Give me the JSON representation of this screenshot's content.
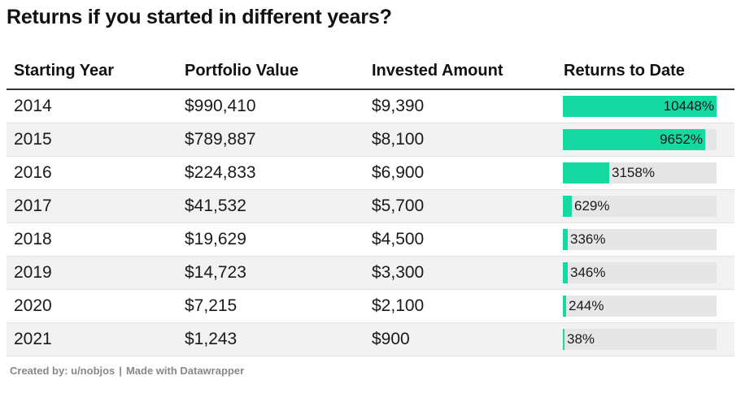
{
  "title": "Returns if you started in different years?",
  "columns": [
    "Starting Year",
    "Portfolio Value",
    "Invested Amount",
    "Returns to Date"
  ],
  "colors": {
    "bar": "#14d9a1",
    "track": "#e6e6e6",
    "row_shade": "#f2f2f2"
  },
  "chart_data": {
    "type": "table",
    "title": "Returns if you started in different years?",
    "columns": [
      "Starting Year",
      "Portfolio Value",
      "Invested Amount",
      "Returns to Date"
    ],
    "bar_column": "Returns to Date",
    "bar_max": 10448,
    "rows": [
      {
        "year": "2014",
        "portfolio": "$990,410",
        "invested": "$9,390",
        "returns": 10448,
        "returns_label": "10448%"
      },
      {
        "year": "2015",
        "portfolio": "$789,887",
        "invested": "$8,100",
        "returns": 9652,
        "returns_label": "9652%"
      },
      {
        "year": "2016",
        "portfolio": "$224,833",
        "invested": "$6,900",
        "returns": 3158,
        "returns_label": "3158%"
      },
      {
        "year": "2017",
        "portfolio": "$41,532",
        "invested": "$5,700",
        "returns": 629,
        "returns_label": "629%"
      },
      {
        "year": "2018",
        "portfolio": "$19,629",
        "invested": "$4,500",
        "returns": 336,
        "returns_label": "336%"
      },
      {
        "year": "2019",
        "portfolio": "$14,723",
        "invested": "$3,300",
        "returns": 346,
        "returns_label": "346%"
      },
      {
        "year": "2020",
        "portfolio": "$7,215",
        "invested": "$2,100",
        "returns": 244,
        "returns_label": "244%"
      },
      {
        "year": "2021",
        "portfolio": "$1,243",
        "invested": "$900",
        "returns": 38,
        "returns_label": "38%"
      }
    ]
  },
  "footer": {
    "created_by": "Created by: u/nobjos",
    "separator": "|",
    "made_with": "Made with Datawrapper"
  }
}
